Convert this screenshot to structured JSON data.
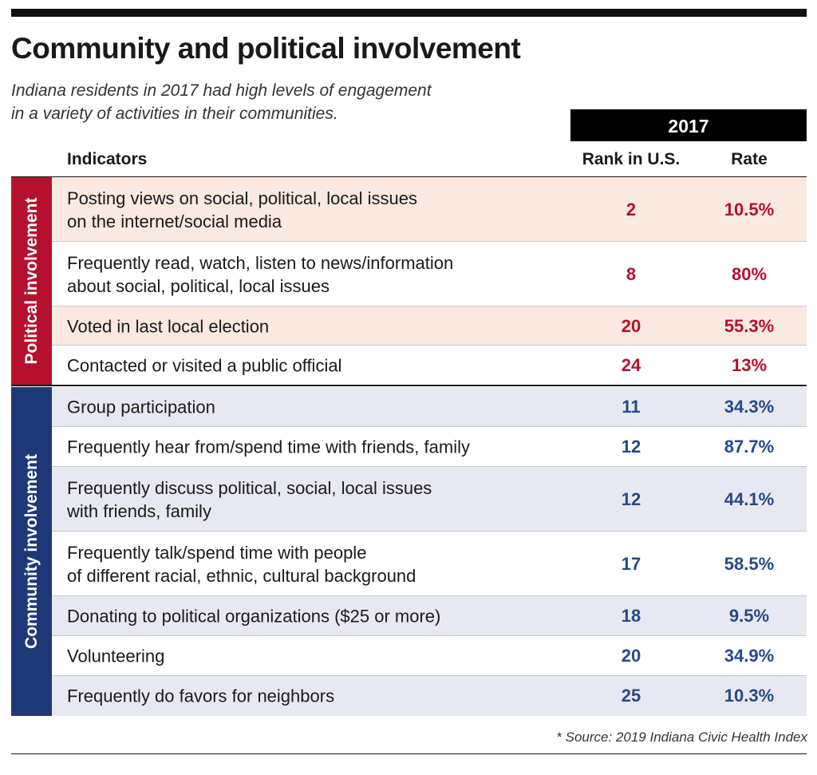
{
  "header": {
    "title": "Community and political involvement",
    "subtitle_line1": "Indiana residents in 2017 had high levels of engagement",
    "subtitle_line2": "in a variety of activities in their communities.",
    "year": "2017",
    "col_indicators": "Indicators",
    "col_rank": "Rank in U.S.",
    "col_rate": "Rate"
  },
  "colors": {
    "political_accent": "#b5112f",
    "political_text": "#b5112f",
    "political_row_shade": "#fbe8df",
    "community_accent": "#1f3978",
    "community_text": "#254a8a",
    "community_row_shade": "#e7e8f2",
    "unshaded_row": "#ffffff"
  },
  "chart_data": {
    "type": "table",
    "title": "Community and political involvement",
    "subtitle": "Indiana residents in 2017 had high levels of engagement in a variety of activities in their communities.",
    "columns": [
      "Indicators",
      "Rank in U.S.",
      "Rate"
    ],
    "groups": [
      {
        "name": "Political involvement",
        "rows": [
          {
            "lines": [
              "Posting views on social, political, local issues",
              "on the internet/social media"
            ],
            "rank": "2",
            "rate": "10.5%",
            "shaded": true
          },
          {
            "lines": [
              "Frequently read, watch, listen to news/information",
              "about social, political, local issues"
            ],
            "rank": "8",
            "rate": "80%",
            "shaded": false
          },
          {
            "lines": [
              "Voted in last local election"
            ],
            "rank": "20",
            "rate": "55.3%",
            "shaded": true
          },
          {
            "lines": [
              "Contacted or visited a public official"
            ],
            "rank": "24",
            "rate": "13%",
            "shaded": false
          }
        ]
      },
      {
        "name": "Community involvement",
        "rows": [
          {
            "lines": [
              "Group participation"
            ],
            "rank": "11",
            "rate": "34.3%",
            "shaded": true
          },
          {
            "lines": [
              "Frequently hear from/spend time with friends, family"
            ],
            "rank": "12",
            "rate": "87.7%",
            "shaded": false
          },
          {
            "lines": [
              "Frequently discuss political, social, local issues",
              "with friends, family"
            ],
            "rank": "12",
            "rate": "44.1%",
            "shaded": true
          },
          {
            "lines": [
              "Frequently talk/spend time with people",
              "of different racial, ethnic, cultural background"
            ],
            "rank": "17",
            "rate": "58.5%",
            "shaded": false
          },
          {
            "lines": [
              "Donating to political organizations ($25 or more)"
            ],
            "rank": "18",
            "rate": "9.5%",
            "shaded": true
          },
          {
            "lines": [
              "Volunteering"
            ],
            "rank": "20",
            "rate": "34.9%",
            "shaded": false
          },
          {
            "lines": [
              "Frequently do favors for neighbors"
            ],
            "rank": "25",
            "rate": "10.3%",
            "shaded": true
          }
        ]
      }
    ]
  },
  "footer": {
    "source": "* Source: 2019 Indiana Civic Health Index"
  }
}
